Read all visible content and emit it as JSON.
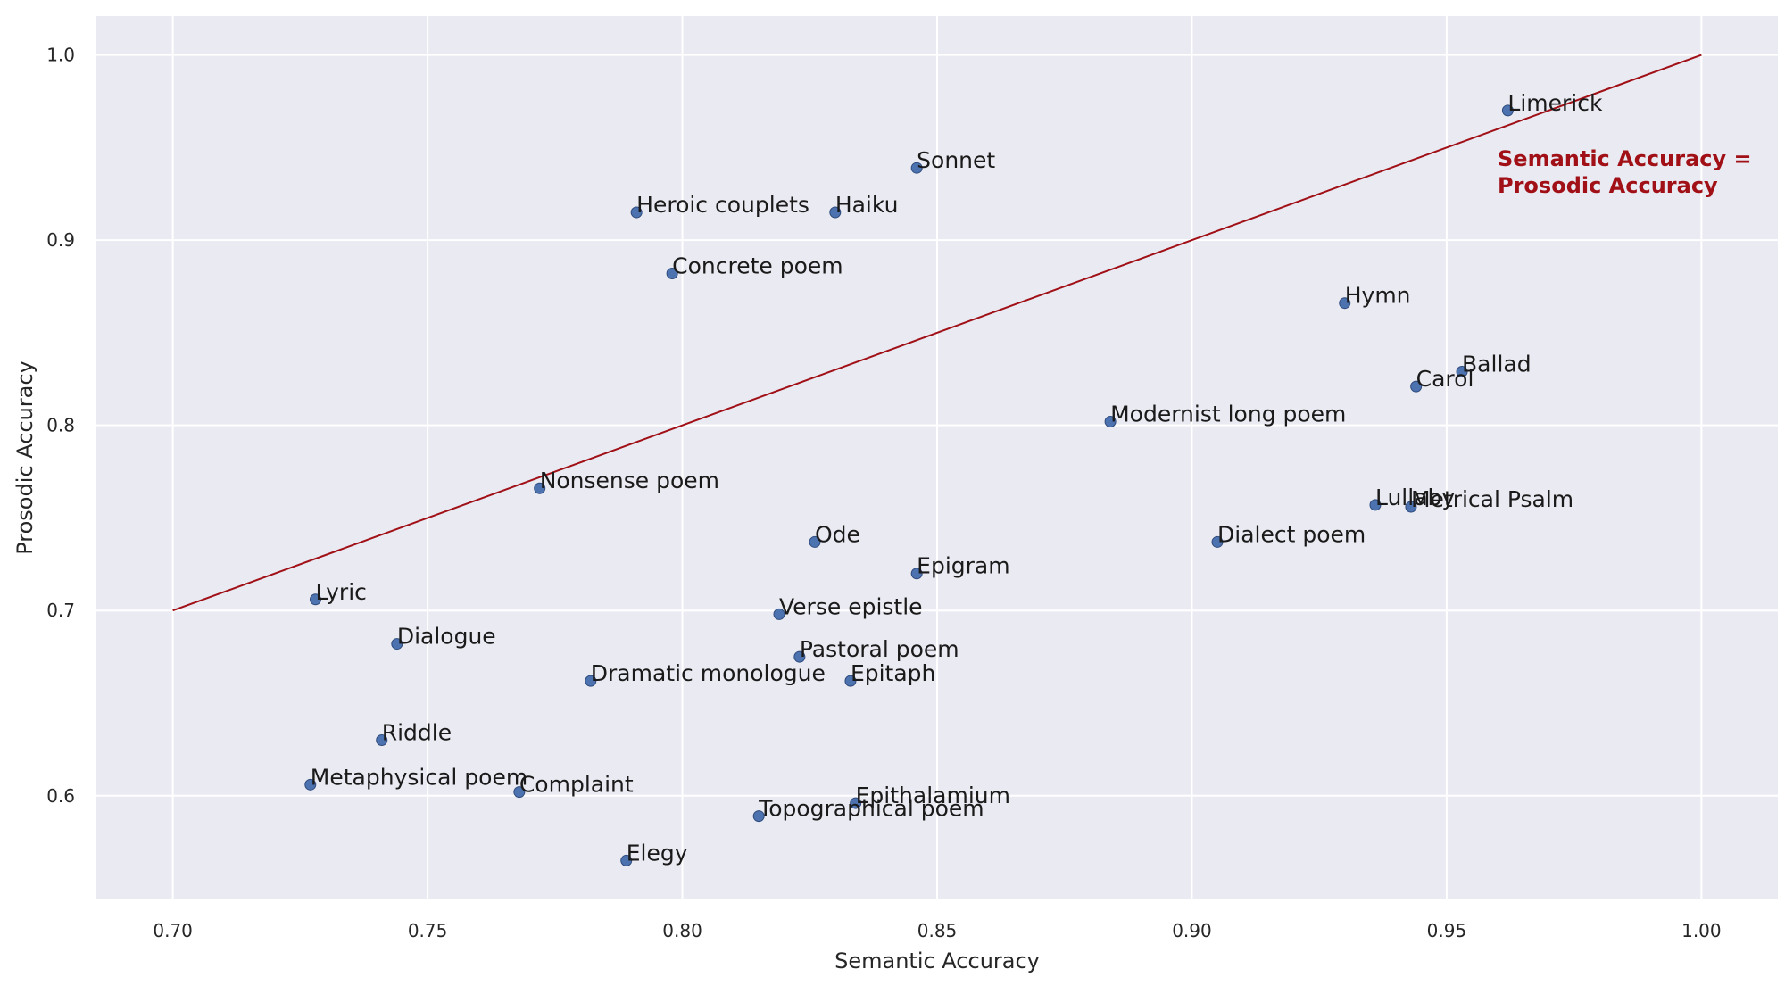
{
  "chart_data": {
    "type": "scatter",
    "xlabel": "Semantic Accuracy",
    "ylabel": "Prosodic Accuracy",
    "xlim": [
      0.685,
      1.015
    ],
    "ylim": [
      0.544,
      1.021
    ],
    "xticks": [
      "0.70",
      "0.75",
      "0.80",
      "0.85",
      "0.90",
      "0.95",
      "1.00"
    ],
    "yticks": [
      "0.6",
      "0.7",
      "0.8",
      "0.9",
      "1.0"
    ],
    "grid": true,
    "marker_color": "#4c72b0",
    "line_color": "#a01016",
    "background": "#eaeaf2",
    "reference_line": {
      "x": [
        0.7,
        1.0
      ],
      "y": [
        0.7,
        1.0
      ]
    },
    "annotation": [
      "Semantic Accuracy =",
      "Prosodic Accuracy"
    ],
    "points": [
      {
        "label": "Limerick",
        "x": 0.962,
        "y": 0.97
      },
      {
        "label": "Sonnet",
        "x": 0.846,
        "y": 0.939
      },
      {
        "label": "Heroic couplets",
        "x": 0.791,
        "y": 0.915
      },
      {
        "label": "Haiku",
        "x": 0.83,
        "y": 0.915
      },
      {
        "label": "Concrete poem",
        "x": 0.798,
        "y": 0.882
      },
      {
        "label": "Hymn",
        "x": 0.93,
        "y": 0.866
      },
      {
        "label": "Ballad",
        "x": 0.953,
        "y": 0.829
      },
      {
        "label": "Carol",
        "x": 0.944,
        "y": 0.821
      },
      {
        "label": "Modernist long poem",
        "x": 0.884,
        "y": 0.802
      },
      {
        "label": "Nonsense poem",
        "x": 0.772,
        "y": 0.766
      },
      {
        "label": "Lullaby",
        "x": 0.936,
        "y": 0.757
      },
      {
        "label": "Metrical Psalm",
        "x": 0.943,
        "y": 0.756
      },
      {
        "label": "Ode",
        "x": 0.826,
        "y": 0.737
      },
      {
        "label": "Dialect poem",
        "x": 0.905,
        "y": 0.737
      },
      {
        "label": "Epigram",
        "x": 0.846,
        "y": 0.72
      },
      {
        "label": "Lyric",
        "x": 0.728,
        "y": 0.706
      },
      {
        "label": "Verse epistle",
        "x": 0.819,
        "y": 0.698
      },
      {
        "label": "Dialogue",
        "x": 0.744,
        "y": 0.682
      },
      {
        "label": "Pastoral poem",
        "x": 0.823,
        "y": 0.675
      },
      {
        "label": "Dramatic monologue",
        "x": 0.782,
        "y": 0.662
      },
      {
        "label": "Epitaph",
        "x": 0.833,
        "y": 0.662
      },
      {
        "label": "Riddle",
        "x": 0.741,
        "y": 0.63
      },
      {
        "label": "Metaphysical poem",
        "x": 0.727,
        "y": 0.606
      },
      {
        "label": "Complaint",
        "x": 0.768,
        "y": 0.602
      },
      {
        "label": "Epithalamium",
        "x": 0.834,
        "y": 0.596
      },
      {
        "label": "Topographical poem",
        "x": 0.815,
        "y": 0.589
      },
      {
        "label": "Elegy",
        "x": 0.789,
        "y": 0.565
      }
    ]
  }
}
